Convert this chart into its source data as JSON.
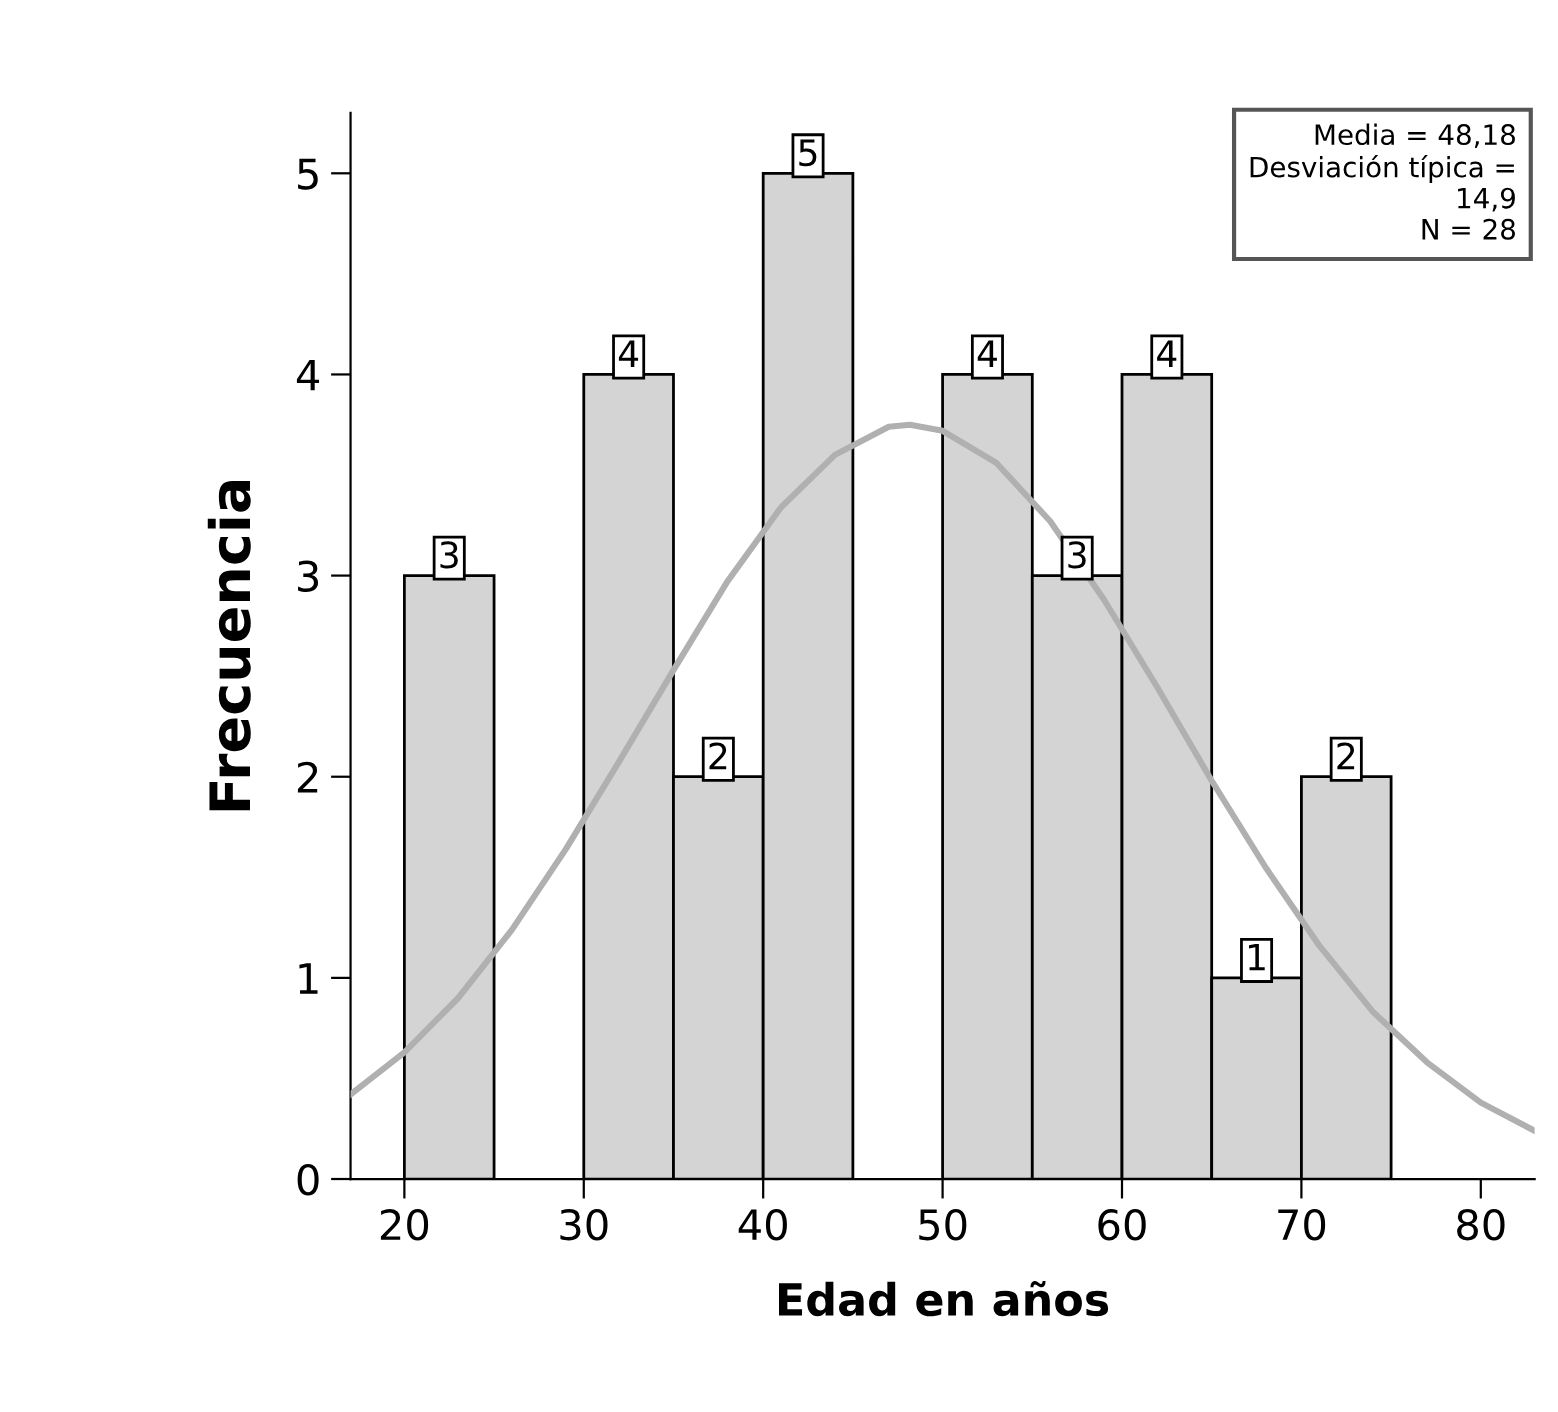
{
  "chart_data": {
    "type": "histogram",
    "xlabel": "Edad en años",
    "ylabel": "Frecuencia",
    "bins": [
      20,
      25,
      30,
      35,
      40,
      45,
      50,
      55,
      60,
      65,
      70,
      75
    ],
    "values": [
      3,
      0,
      4,
      2,
      5,
      0,
      4,
      3,
      4,
      1,
      2
    ],
    "value_labels": [
      "3",
      null,
      "4",
      "2",
      "5",
      null,
      "4",
      "3",
      "4",
      "1",
      "2"
    ],
    "color": "#d4d4d4",
    "series": [
      {
        "type": "line",
        "color": "#b0b0b0",
        "x": [
          17,
          20,
          23,
          26,
          29,
          32,
          35,
          38,
          41,
          44,
          47,
          48.18,
          50,
          53,
          56,
          59,
          62,
          65,
          68,
          71,
          74,
          77,
          80,
          83
        ],
        "values": [
          0.42,
          0.63,
          0.9,
          1.24,
          1.64,
          2.08,
          2.53,
          2.97,
          3.34,
          3.6,
          3.74,
          3.75,
          3.72,
          3.56,
          3.27,
          2.88,
          2.44,
          1.98,
          1.55,
          1.16,
          0.83,
          0.58,
          0.38,
          0.24
        ]
      }
    ],
    "annotations": [
      "Media = 48,18\nDesviación típica =\n14,9\nN = 28"
    ],
    "xlim": [
      17,
      83
    ],
    "ylim": [
      0,
      5.3
    ],
    "xticks": [
      20,
      30,
      40,
      50,
      60,
      70,
      80
    ],
    "yticks": [
      0,
      1,
      2,
      3,
      4,
      5
    ],
    "grid": false,
    "legend": false
  }
}
